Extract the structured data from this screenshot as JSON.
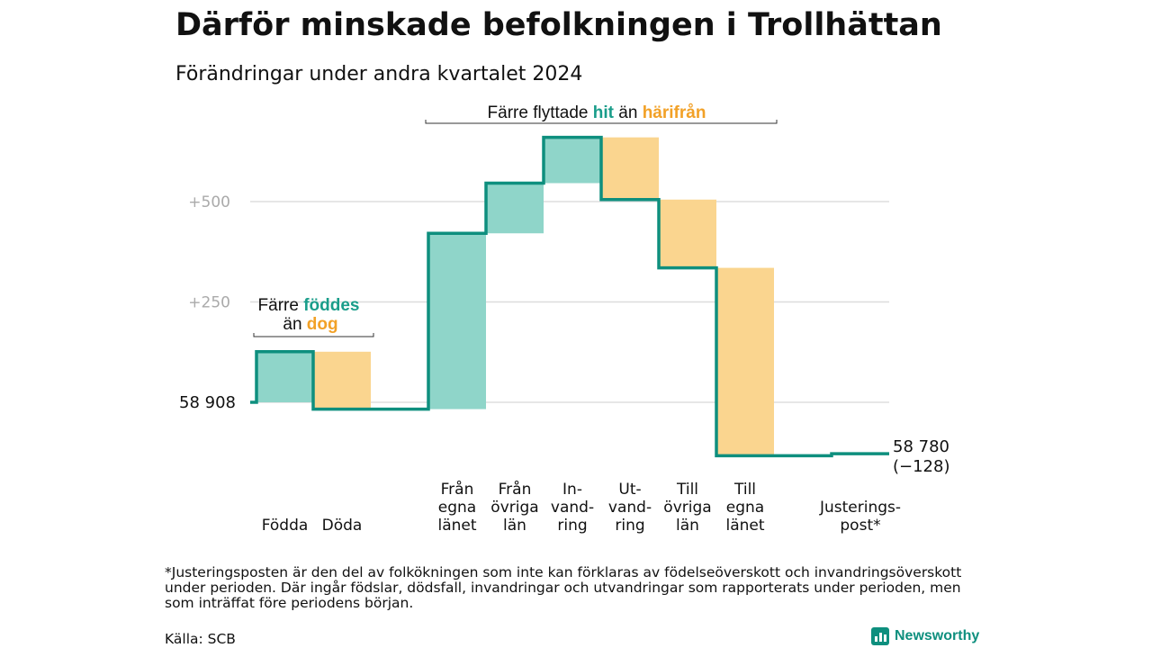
{
  "header": {
    "title": "Därför minskade befolkningen i Trollhättan",
    "subtitle": "Förändringar under andra kvartalet 2024"
  },
  "colors": {
    "increase": "#8fd5c9",
    "decrease": "#fad58f",
    "line": "#0e8f7e",
    "teal_text": "#1a9d8a",
    "orange_text": "#f2a127",
    "grid": "#dddddd"
  },
  "chart_data": {
    "type": "waterfall",
    "baseline": 58908,
    "start_label": "58  908",
    "end_label_value": "58 780",
    "end_label_change": "(−128)",
    "yticks": [
      {
        "value": 500,
        "label": "+500"
      },
      {
        "value": 250,
        "label": "+250"
      }
    ],
    "ylim": [
      -150,
      750
    ],
    "steps": [
      {
        "label": [
          "Födda"
        ],
        "change": 126,
        "kind": "increase"
      },
      {
        "label": [
          "Döda"
        ],
        "change": -143,
        "kind": "decrease"
      },
      {
        "label": [
          "Från",
          "egna",
          "länet"
        ],
        "change": 438,
        "kind": "increase"
      },
      {
        "label": [
          "Från",
          "övriga",
          "län"
        ],
        "change": 125,
        "kind": "increase"
      },
      {
        "label": [
          "In-",
          "vand-",
          "ring"
        ],
        "change": 114,
        "kind": "increase"
      },
      {
        "label": [
          "Ut-",
          "vand-",
          "ring"
        ],
        "change": -155,
        "kind": "decrease"
      },
      {
        "label": [
          "Till",
          "övriga",
          "län"
        ],
        "change": -170,
        "kind": "decrease"
      },
      {
        "label": [
          "Till",
          "egna",
          "länet"
        ],
        "change": -468,
        "kind": "decrease"
      },
      {
        "label": [
          "Justerings-",
          "post*"
        ],
        "change": 5,
        "kind": "adjustment"
      }
    ],
    "annotations": {
      "births": {
        "prefix": "Färre",
        "highlight1": "föddes",
        "middle": "än",
        "highlight2": "dog"
      },
      "migration": {
        "prefix": "Färre flyttade",
        "highlight1": "hit",
        "middle": "än",
        "highlight2": "härifrån"
      }
    }
  },
  "footnote": "*Justeringsposten är den del av folkökningen som inte kan förklaras av födelseöverskott och invandringsöverskott under perioden. Där ingår födslar, dödsfall, invandringar och utvandringar som rapporterats under perioden, men som inträffat före periodens början.",
  "source": "Källa: SCB",
  "brand": {
    "name": "Newsworthy",
    "icon": "bar-chart-icon"
  }
}
